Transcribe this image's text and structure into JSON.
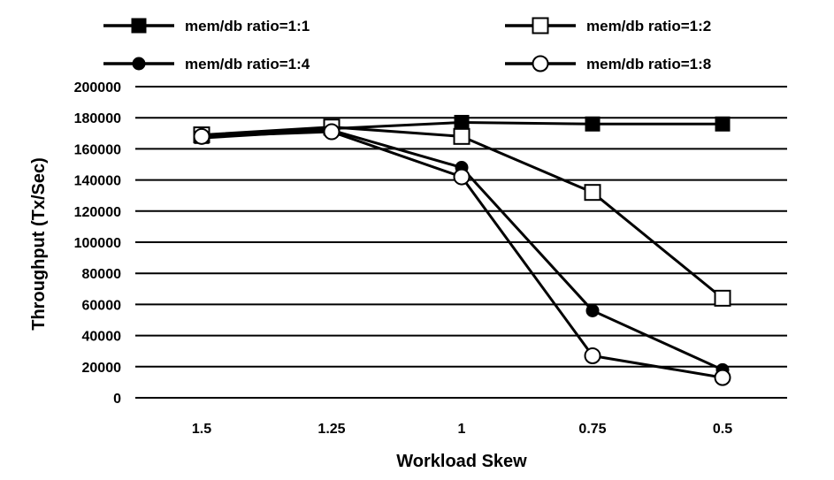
{
  "chart_data": {
    "type": "line",
    "title": "",
    "xlabel": "Workload Skew",
    "ylabel": "Throughput (Tx/Sec)",
    "categories": [
      "1.5",
      "1.25",
      "1",
      "0.75",
      "0.5"
    ],
    "ylim": [
      0,
      200000
    ],
    "yticks": [
      "0",
      "20000",
      "40000",
      "60000",
      "80000",
      "100000",
      "120000",
      "140000",
      "160000",
      "180000",
      "200000"
    ],
    "grid": "horizontal",
    "legend_position": "top",
    "series": [
      {
        "name": "mem/db ratio=1:1",
        "marker": "square-filled",
        "values": [
          168000,
          173000,
          177000,
          176000,
          176000
        ]
      },
      {
        "name": "mem/db ratio=1:2",
        "marker": "square-open",
        "values": [
          169000,
          174000,
          168000,
          132000,
          64000
        ]
      },
      {
        "name": "mem/db ratio=1:4",
        "marker": "circle-filled",
        "values": [
          167000,
          172000,
          148000,
          56000,
          18000
        ]
      },
      {
        "name": "mem/db ratio=1:8",
        "marker": "circle-open",
        "values": [
          168000,
          171000,
          142000,
          27000,
          13000
        ]
      }
    ],
    "colors": {
      "line": "#000000",
      "grid": "#000000",
      "open_fill": "#ffffff"
    }
  }
}
